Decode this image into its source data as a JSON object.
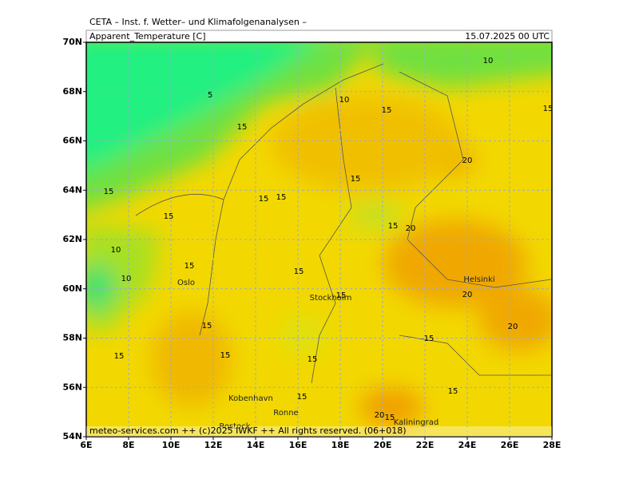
{
  "header": {
    "institute": "CETA – Inst. f. Wetter– und Klimafolgenanalysen –",
    "parameter": "Apparent_Temperature [C]",
    "valid_time": "15.07.2025 00 UTC"
  },
  "footer": "meteo-services.com ++ (c)2025 IWKF ++ All rights reserved. (06+018)",
  "map": {
    "lon_ticks": [
      {
        "value": 6,
        "label": "6E"
      },
      {
        "value": 8,
        "label": "8E"
      },
      {
        "value": 10,
        "label": "10E"
      },
      {
        "value": 12,
        "label": "12E"
      },
      {
        "value": 14,
        "label": "14E"
      },
      {
        "value": 16,
        "label": "16E"
      },
      {
        "value": 18,
        "label": "18E"
      },
      {
        "value": 20,
        "label": "20E"
      },
      {
        "value": 22,
        "label": "22E"
      },
      {
        "value": 24,
        "label": "24E"
      },
      {
        "value": 26,
        "label": "26E"
      },
      {
        "value": 28,
        "label": "28E"
      }
    ],
    "lat_ticks": [
      {
        "value": 54,
        "label": "54N"
      },
      {
        "value": 56,
        "label": "56N"
      },
      {
        "value": 58,
        "label": "58N"
      },
      {
        "value": 60,
        "label": "60N"
      },
      {
        "value": 62,
        "label": "62N"
      },
      {
        "value": 64,
        "label": "64N"
      },
      {
        "value": 66,
        "label": "66N"
      },
      {
        "value": 68,
        "label": "68N"
      },
      {
        "value": 70,
        "label": "70N"
      }
    ],
    "contour_labels": [
      10,
      5,
      10,
      15,
      15,
      15,
      20,
      15,
      15,
      15,
      15,
      15,
      15,
      20,
      10,
      15,
      15,
      10,
      20,
      15,
      15,
      20,
      15,
      15,
      15,
      15,
      15,
      15,
      20,
      15
    ],
    "cities": [
      "Oslo",
      "Stockholm",
      "Helsinki",
      "Kobenhavn",
      "Ronne",
      "Kaliningrad",
      "Rostock"
    ]
  }
}
